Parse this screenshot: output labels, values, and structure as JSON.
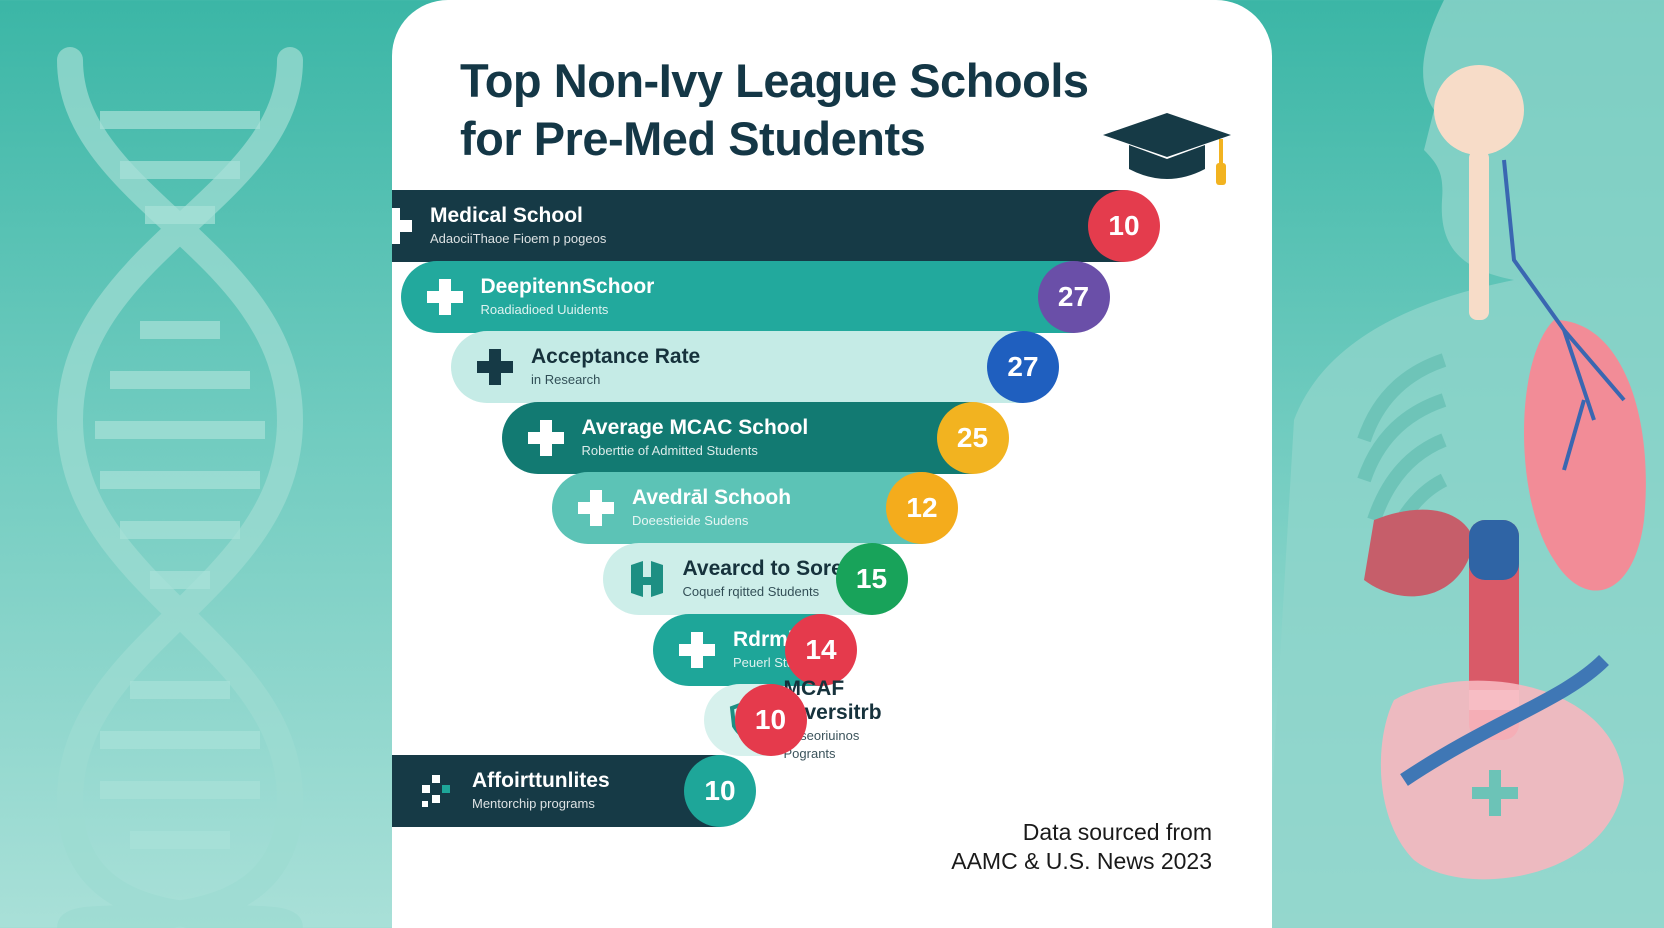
{
  "title": {
    "line1": "Top Non-Ivy League Schools",
    "line2": "for Pre-Med Students"
  },
  "rows": [
    {
      "label": "Medical School",
      "sub": "AdaociiThaoe Fioem p pogeos",
      "value": "10",
      "icon": "plus-icon",
      "bg": "#163a46",
      "fg": "#ffffff",
      "badge": "#e43c4d"
    },
    {
      "label": "DeepitennSchoor",
      "sub": "Roadiadioed Uuidents",
      "value": "27",
      "icon": "plus-icon",
      "bg": "#22a99d",
      "fg": "#ffffff",
      "badge": "#6a4fa8"
    },
    {
      "label": "Acceptance Rate",
      "sub": "in Research",
      "value": "27",
      "icon": "plus-icon",
      "bg": "#c5ebe6",
      "fg": "#16323c",
      "badge": "#1f5fbf"
    },
    {
      "label": "Average MCAC School",
      "sub": "Roberttie of Admitted Students",
      "value": "25",
      "icon": "plus-icon",
      "bg": "#127a72",
      "fg": "#ffffff",
      "badge": "#f2b320"
    },
    {
      "label": "Avedrāl Schooh",
      "sub": "Doeestieide Sudens",
      "value": "12",
      "icon": "plus-icon",
      "bg": "#5cc3b6",
      "fg": "#ffffff",
      "badge": "#f4ac1c"
    },
    {
      "label": "Avearcd to Sored",
      "sub": "Coquef rqitted Students",
      "value": "15",
      "icon": "building-icon",
      "bg": "#cdeee9",
      "fg": "#16323c",
      "badge": "#18a35a"
    },
    {
      "label": "Rdrmitibiesion",
      "sub": "Peuerl Stuoims",
      "value": "14",
      "icon": "plus-icon",
      "bg": "#1ea699",
      "fg": "#ffffff",
      "badge": "#e53a4c"
    },
    {
      "label": "MCAF Diversitrb",
      "sub": "Reseoriuinos Pogrants",
      "value": "10",
      "icon": "shield-icon",
      "bg": "#d7f1ed",
      "fg": "#16323c",
      "badge": "#e53a4c"
    },
    {
      "label": "Affoirttunlites",
      "sub": "Mentorchip programs",
      "value": "10",
      "icon": "grid-icon",
      "bg": "#163a46",
      "fg": "#ffffff",
      "badge": "#1ea699"
    }
  ],
  "source": {
    "line1": "Data sourced from",
    "line2": "AAMC & U.S. News 2023"
  },
  "colors": {
    "title": "#143746",
    "background_teal": "#3bb6a6"
  }
}
